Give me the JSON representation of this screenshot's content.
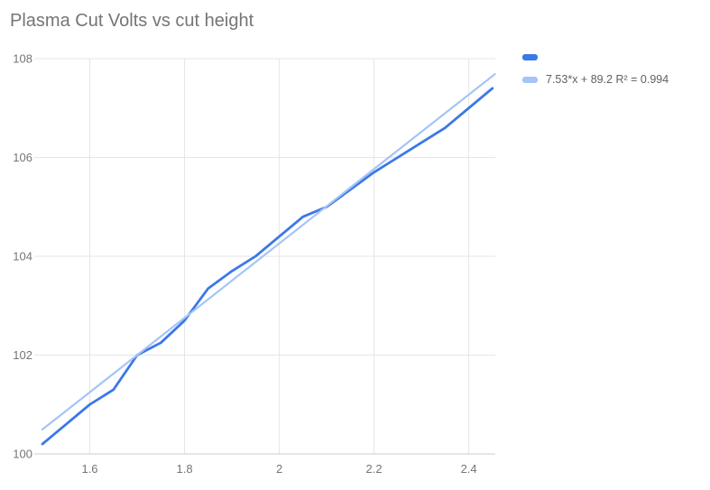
{
  "chart": {
    "title": "Plasma Cut Volts vs cut height",
    "legend": {
      "series_label": "",
      "trendline_label": "7.53*x + 89.2 R² = 0.994"
    }
  },
  "chart_data": {
    "type": "line",
    "title": "Plasma Cut Volts vs cut height",
    "xlabel": "",
    "ylabel": "",
    "xlim": [
      1.5,
      2.455
    ],
    "ylim": [
      100,
      108
    ],
    "grid": true,
    "legend_position": "top-right-outside",
    "x_ticks": [
      1.6,
      1.8,
      2.0,
      2.2,
      2.4
    ],
    "x_tick_labels": [
      "1.6",
      "1.8",
      "2",
      "2.2",
      "2.4"
    ],
    "y_ticks": [
      100,
      102,
      104,
      106,
      108
    ],
    "y_tick_labels": [
      "100",
      "102",
      "104",
      "106",
      "108"
    ],
    "x": [
      1.5,
      1.55,
      1.6,
      1.65,
      1.7,
      1.75,
      1.8,
      1.85,
      1.9,
      1.95,
      2.0,
      2.05,
      2.1,
      2.15,
      2.2,
      2.25,
      2.3,
      2.35,
      2.4,
      2.45
    ],
    "series": [
      {
        "name": "",
        "color": "#3b78e8",
        "values": [
          100.2,
          100.6,
          101.0,
          101.3,
          102.0,
          102.25,
          102.7,
          103.35,
          103.7,
          104.0,
          104.4,
          104.8,
          105.0,
          105.35,
          105.7,
          106.0,
          106.3,
          106.6,
          107.0,
          107.4
        ]
      }
    ],
    "trendline": {
      "label": "7.53*x + 89.2 R² = 0.994",
      "slope": 7.53,
      "intercept": 89.2,
      "r2": 0.994,
      "color": "#a5c4f7"
    },
    "grid_color": "#e6e6e6",
    "axis_line_color": "#c9cccf",
    "text_color": "#757575"
  }
}
